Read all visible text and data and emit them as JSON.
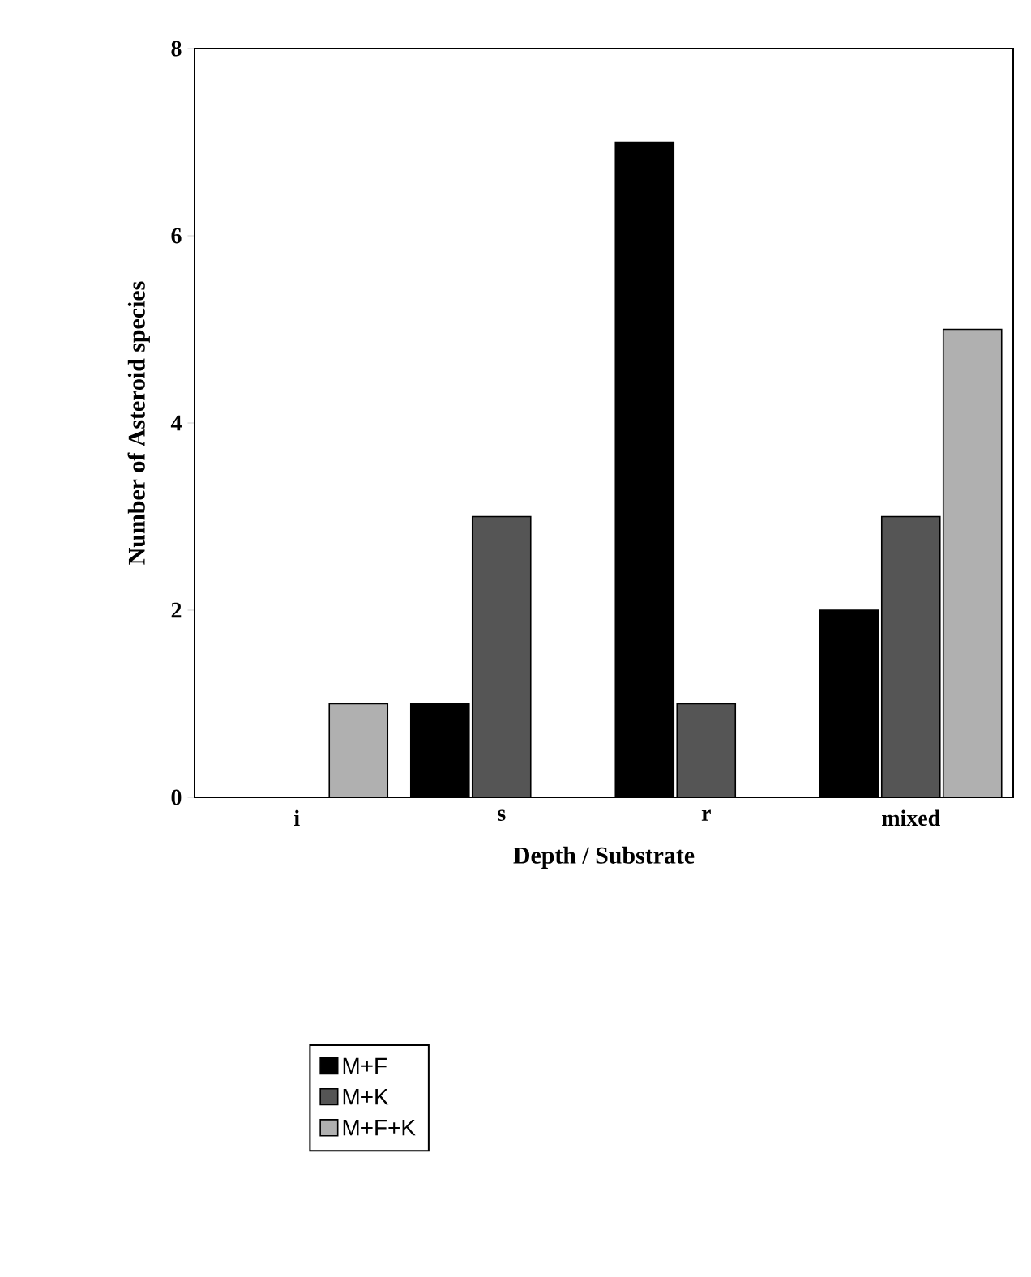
{
  "chart_data": {
    "type": "bar",
    "xlabel": "Depth / Substrate",
    "ylabel": "Number of Asteroid species",
    "categories": [
      "i",
      "s",
      "r",
      "mixed"
    ],
    "series": [
      {
        "name": "M+F",
        "color": "#000000",
        "values": [
          0,
          1,
          7,
          2
        ]
      },
      {
        "name": "M+K",
        "color": "#555555",
        "values": [
          0,
          3,
          1,
          3
        ]
      },
      {
        "name": "M+F+K",
        "color": "#b0b0b0",
        "values": [
          1,
          0,
          0,
          5
        ]
      }
    ],
    "ylim": [
      0,
      8
    ],
    "yticks": [
      0,
      2,
      4,
      6,
      8
    ],
    "legend": "bottom left"
  }
}
